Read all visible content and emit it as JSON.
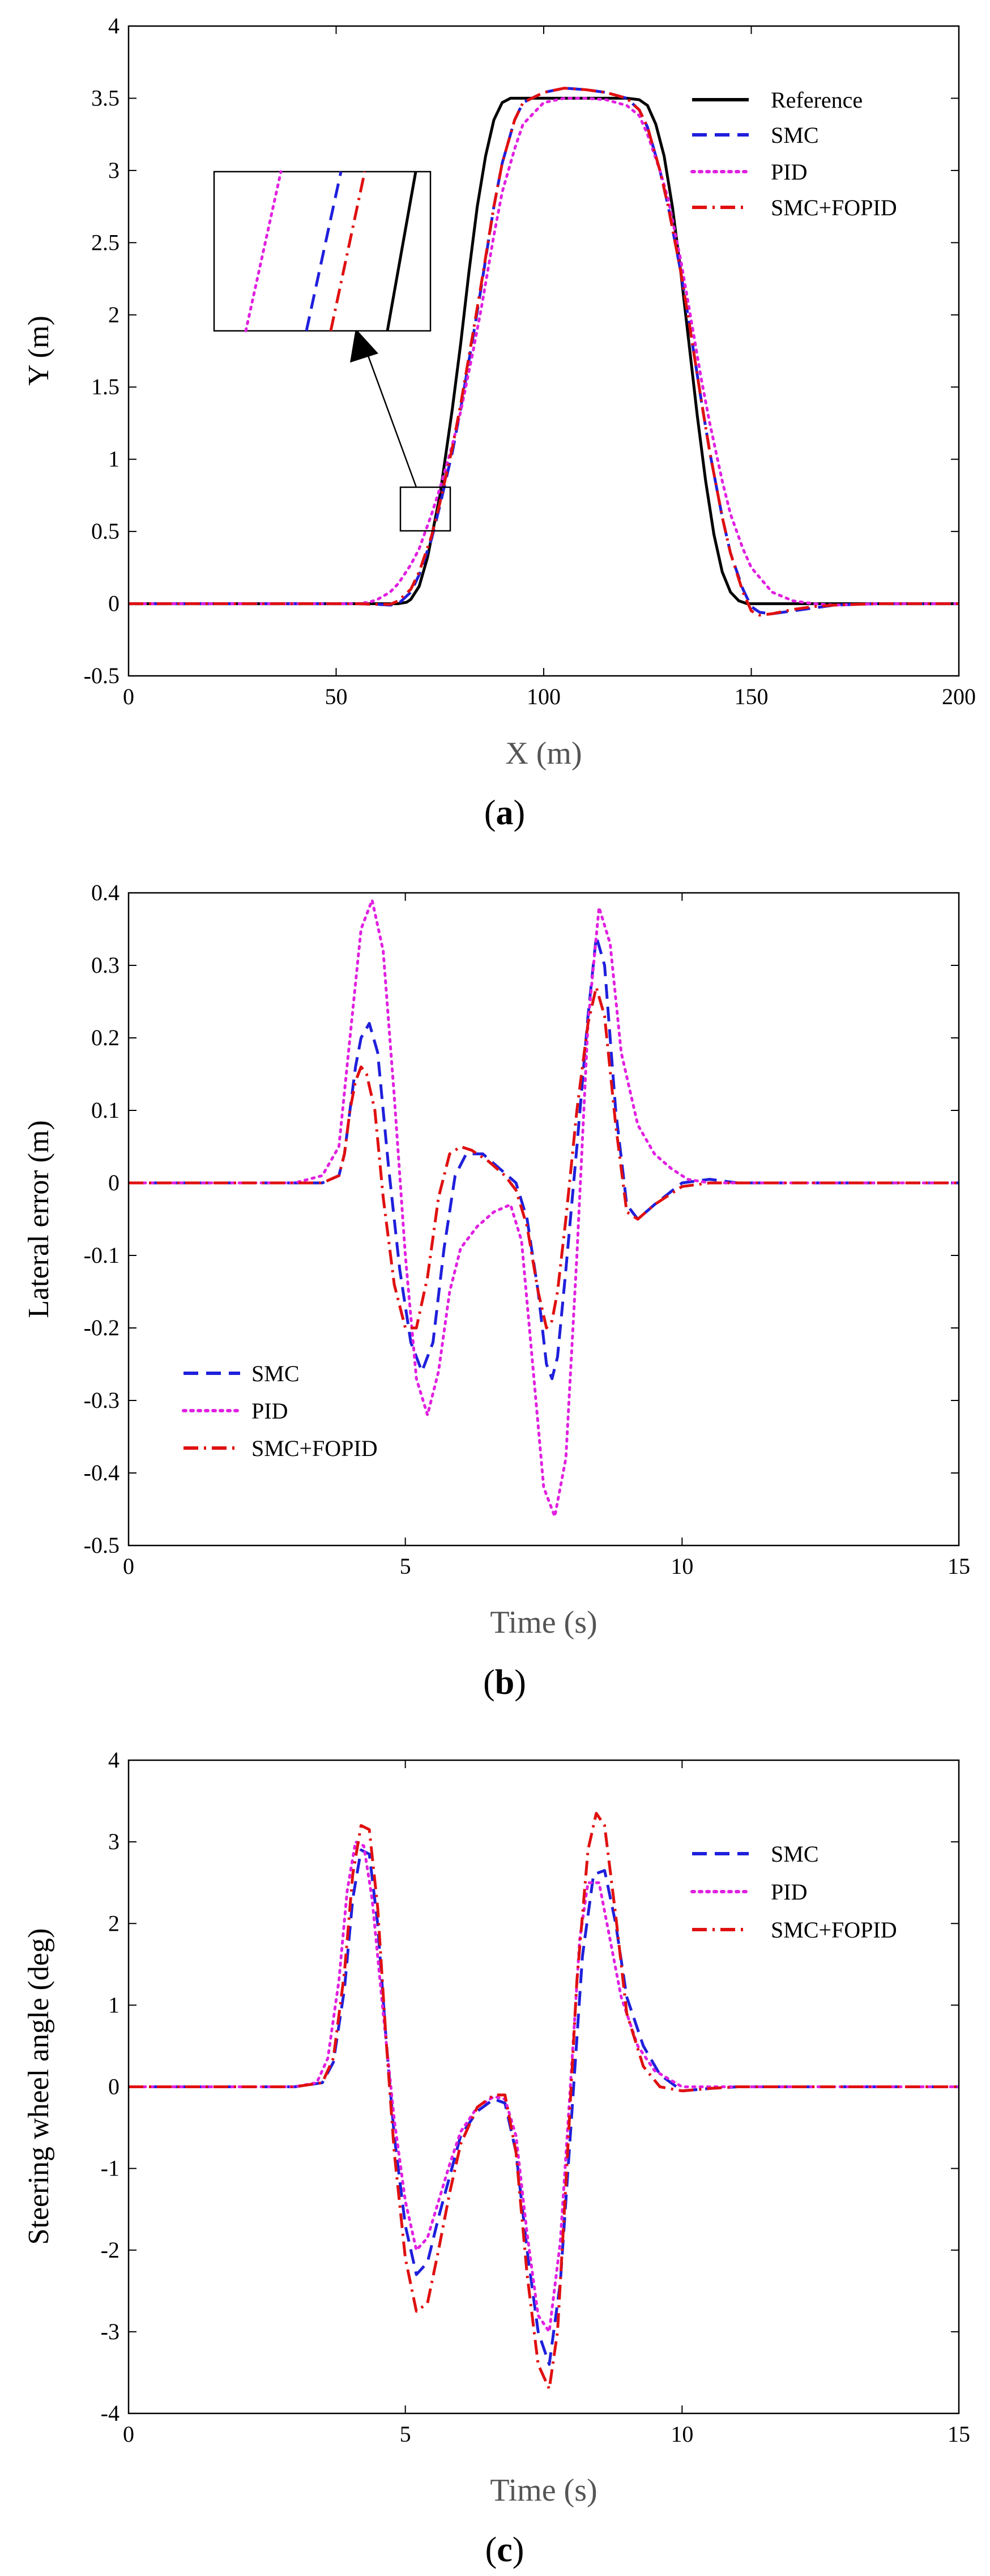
{
  "chart_data": [
    {
      "type": "line",
      "panel": "a",
      "caption": {
        "open": "(",
        "letter": "a",
        "close": ")"
      },
      "xlabel": "X (m)",
      "ylabel": "Y (m)",
      "xlim": [
        0,
        200
      ],
      "ylim": [
        -0.5,
        4
      ],
      "xticks": [
        0,
        50,
        100,
        150,
        200
      ],
      "yticks": [
        -0.5,
        0,
        0.5,
        1,
        1.5,
        2,
        2.5,
        3,
        3.5,
        4
      ],
      "legend_position": "top-right",
      "series": [
        {
          "name": "Reference",
          "color": "#000000",
          "style": "solid",
          "x": [
            0,
            60,
            65,
            67,
            68,
            70,
            72,
            75,
            78,
            80,
            82,
            84,
            86,
            88,
            90,
            92,
            93,
            95,
            100,
            110,
            120,
            123,
            125,
            127,
            129,
            131,
            133,
            135,
            137,
            139,
            141,
            143,
            145,
            147,
            149,
            150,
            200
          ],
          "y": [
            0,
            0,
            0,
            0.01,
            0.03,
            0.12,
            0.32,
            0.75,
            1.35,
            1.8,
            2.3,
            2.75,
            3.1,
            3.35,
            3.47,
            3.5,
            3.5,
            3.5,
            3.5,
            3.5,
            3.5,
            3.49,
            3.45,
            3.32,
            3.1,
            2.75,
            2.3,
            1.8,
            1.3,
            0.85,
            0.48,
            0.22,
            0.08,
            0.02,
            0.0,
            0,
            0
          ]
        },
        {
          "name": "SMC",
          "color": "#1f1fdc",
          "style": "dash",
          "x": [
            0,
            55,
            60,
            63,
            65,
            68,
            70,
            73,
            75,
            78,
            80,
            83,
            85,
            88,
            90,
            93,
            95,
            100,
            105,
            110,
            115,
            120,
            123,
            125,
            128,
            130,
            133,
            135,
            138,
            140,
            143,
            145,
            148,
            150,
            152,
            155,
            160,
            165,
            170,
            180,
            200
          ],
          "y": [
            0,
            0,
            -0.005,
            -0.01,
            0.0,
            0.08,
            0.2,
            0.45,
            0.68,
            1.05,
            1.35,
            1.85,
            2.2,
            2.75,
            3.05,
            3.35,
            3.47,
            3.54,
            3.57,
            3.56,
            3.54,
            3.5,
            3.42,
            3.3,
            3.0,
            2.75,
            2.3,
            1.95,
            1.4,
            1.05,
            0.6,
            0.35,
            0.1,
            -0.02,
            -0.06,
            -0.07,
            -0.05,
            -0.03,
            -0.01,
            0,
            0
          ]
        },
        {
          "name": "PID",
          "color": "#e020e0",
          "style": "dot",
          "x": [
            0,
            55,
            58,
            60,
            63,
            65,
            68,
            70,
            73,
            75,
            78,
            80,
            83,
            85,
            88,
            90,
            93,
            95,
            100,
            105,
            110,
            115,
            120,
            123,
            125,
            128,
            130,
            133,
            135,
            138,
            140,
            143,
            145,
            148,
            150,
            155,
            160,
            165,
            170,
            180,
            200
          ],
          "y": [
            0,
            0,
            0.01,
            0.03,
            0.08,
            0.14,
            0.27,
            0.38,
            0.62,
            0.8,
            1.1,
            1.33,
            1.75,
            2.05,
            2.55,
            2.85,
            3.15,
            3.32,
            3.47,
            3.5,
            3.5,
            3.49,
            3.45,
            3.38,
            3.25,
            3.0,
            2.8,
            2.38,
            2.05,
            1.55,
            1.25,
            0.85,
            0.62,
            0.38,
            0.25,
            0.08,
            0.02,
            0.0,
            -0.01,
            0,
            0
          ]
        },
        {
          "name": "SMC+FOPID",
          "color": "#e01010",
          "style": "dashdot",
          "x": [
            0,
            55,
            60,
            63,
            65,
            68,
            70,
            73,
            75,
            78,
            80,
            83,
            85,
            88,
            90,
            93,
            95,
            100,
            105,
            110,
            115,
            120,
            123,
            125,
            128,
            130,
            133,
            135,
            138,
            140,
            143,
            145,
            148,
            150,
            152,
            155,
            160,
            165,
            170,
            180,
            200
          ],
          "y": [
            0,
            0,
            -0.005,
            -0.005,
            0.02,
            0.1,
            0.22,
            0.47,
            0.7,
            1.08,
            1.38,
            1.88,
            2.22,
            2.75,
            3.05,
            3.35,
            3.47,
            3.54,
            3.57,
            3.56,
            3.54,
            3.5,
            3.42,
            3.3,
            3.0,
            2.75,
            2.3,
            1.95,
            1.4,
            1.05,
            0.6,
            0.35,
            0.08,
            -0.05,
            -0.08,
            -0.07,
            -0.04,
            -0.02,
            -0.01,
            0,
            0
          ]
        }
      ],
      "inset": {
        "source_box": {
          "x": [
            66,
            78
          ],
          "y": [
            0.53,
            0.83
          ]
        },
        "arrow": "points from source box to inset",
        "shows": [
          "PID",
          "SMC",
          "SMC+FOPID",
          "Reference"
        ]
      }
    },
    {
      "type": "line",
      "panel": "b",
      "caption": {
        "open": "(",
        "letter": "b",
        "close": ")"
      },
      "xlabel": "Time (s)",
      "ylabel": "Lateral error (m)",
      "xlim": [
        0,
        15
      ],
      "ylim": [
        -0.5,
        0.4
      ],
      "xticks": [
        0,
        5,
        10,
        15
      ],
      "yticks": [
        -0.5,
        -0.4,
        -0.3,
        -0.2,
        -0.1,
        0,
        0.1,
        0.2,
        0.3,
        0.4
      ],
      "legend_position": "bottom-left",
      "series": [
        {
          "name": "SMC",
          "color": "#1f1fdc",
          "style": "dash",
          "x": [
            0,
            3,
            3.5,
            3.8,
            3.9,
            4.0,
            4.1,
            4.2,
            4.35,
            4.5,
            4.7,
            4.9,
            5.1,
            5.3,
            5.5,
            5.7,
            5.9,
            6.1,
            6.4,
            6.7,
            7.0,
            7.2,
            7.4,
            7.55,
            7.65,
            7.75,
            7.9,
            8.1,
            8.3,
            8.45,
            8.6,
            8.8,
            9.0,
            9.2,
            9.5,
            10,
            10.5,
            11,
            15
          ],
          "y": [
            0,
            0,
            0,
            0.01,
            0.04,
            0.1,
            0.16,
            0.2,
            0.22,
            0.18,
            0.02,
            -0.12,
            -0.22,
            -0.26,
            -0.22,
            -0.09,
            0.01,
            0.04,
            0.04,
            0.02,
            0.0,
            -0.05,
            -0.15,
            -0.25,
            -0.27,
            -0.24,
            -0.12,
            0.05,
            0.23,
            0.34,
            0.3,
            0.1,
            -0.03,
            -0.05,
            -0.03,
            0.0,
            0.005,
            0.0,
            0
          ]
        },
        {
          "name": "PID",
          "color": "#e020e0",
          "style": "dot",
          "x": [
            0,
            3,
            3.5,
            3.8,
            4.0,
            4.2,
            4.4,
            4.6,
            4.8,
            5.0,
            5.2,
            5.4,
            5.6,
            5.8,
            6.0,
            6.3,
            6.6,
            6.9,
            7.1,
            7.3,
            7.5,
            7.7,
            7.9,
            8.1,
            8.3,
            8.5,
            8.7,
            8.9,
            9.2,
            9.5,
            9.8,
            10.1,
            10.5,
            11,
            15
          ],
          "y": [
            0,
            0,
            0.01,
            0.05,
            0.2,
            0.35,
            0.39,
            0.32,
            0.12,
            -0.1,
            -0.27,
            -0.32,
            -0.26,
            -0.15,
            -0.09,
            -0.06,
            -0.04,
            -0.03,
            -0.08,
            -0.25,
            -0.42,
            -0.46,
            -0.38,
            -0.1,
            0.22,
            0.38,
            0.33,
            0.18,
            0.08,
            0.04,
            0.02,
            0.005,
            0.0,
            0.0,
            0
          ]
        },
        {
          "name": "SMC+FOPID",
          "color": "#e01010",
          "style": "dashdot",
          "x": [
            0,
            3,
            3.5,
            3.8,
            3.9,
            4.0,
            4.1,
            4.2,
            4.3,
            4.45,
            4.6,
            4.8,
            5.0,
            5.2,
            5.4,
            5.6,
            5.8,
            6.0,
            6.2,
            6.5,
            6.8,
            7.0,
            7.2,
            7.4,
            7.55,
            7.65,
            7.75,
            7.9,
            8.1,
            8.3,
            8.45,
            8.6,
            8.8,
            9.0,
            9.2,
            9.5,
            10,
            10.5,
            11,
            15
          ],
          "y": [
            0,
            0,
            0,
            0.01,
            0.04,
            0.1,
            0.14,
            0.16,
            0.15,
            0.1,
            -0.02,
            -0.14,
            -0.2,
            -0.2,
            -0.13,
            -0.02,
            0.04,
            0.05,
            0.045,
            0.03,
            0.01,
            -0.01,
            -0.06,
            -0.15,
            -0.2,
            -0.19,
            -0.15,
            -0.05,
            0.1,
            0.22,
            0.27,
            0.23,
            0.08,
            -0.04,
            -0.05,
            -0.03,
            -0.005,
            0.0,
            0.0,
            0
          ]
        }
      ]
    },
    {
      "type": "line",
      "panel": "c",
      "caption": {
        "open": "(",
        "letter": "c",
        "close": ")"
      },
      "xlabel": "Time (s)",
      "ylabel": "Steering wheel angle (deg)",
      "xlim": [
        0,
        15
      ],
      "ylim": [
        -4,
        4
      ],
      "xticks": [
        0,
        5,
        10,
        15
      ],
      "yticks": [
        -4,
        -3,
        -2,
        -1,
        0,
        1,
        2,
        3,
        4
      ],
      "legend_position": "top-right",
      "series": [
        {
          "name": "SMC",
          "color": "#1f1fdc",
          "style": "dash",
          "x": [
            0,
            3,
            3.5,
            3.7,
            3.9,
            4.05,
            4.2,
            4.35,
            4.5,
            4.65,
            4.8,
            5.0,
            5.2,
            5.4,
            5.6,
            5.8,
            6.0,
            6.3,
            6.6,
            6.8,
            7.0,
            7.2,
            7.4,
            7.6,
            7.8,
            8.0,
            8.2,
            8.4,
            8.6,
            8.8,
            9.0,
            9.3,
            9.6,
            10,
            10.5,
            11,
            15
          ],
          "y": [
            0,
            0,
            0.05,
            0.3,
            1.2,
            2.3,
            2.9,
            2.85,
            2.0,
            0.6,
            -0.6,
            -1.7,
            -2.3,
            -2.15,
            -1.6,
            -1.1,
            -0.6,
            -0.3,
            -0.15,
            -0.2,
            -0.8,
            -2.0,
            -3.0,
            -3.4,
            -2.4,
            -0.4,
            1.6,
            2.6,
            2.65,
            2.0,
            1.1,
            0.5,
            0.15,
            -0.05,
            -0.02,
            0.0,
            0
          ]
        },
        {
          "name": "PID",
          "color": "#e020e0",
          "style": "dot",
          "x": [
            0,
            3,
            3.4,
            3.6,
            3.8,
            3.95,
            4.1,
            4.25,
            4.4,
            4.6,
            4.8,
            5.0,
            5.2,
            5.4,
            5.6,
            5.8,
            6.0,
            6.3,
            6.6,
            6.8,
            7.0,
            7.2,
            7.4,
            7.6,
            7.8,
            8.0,
            8.15,
            8.3,
            8.5,
            8.7,
            8.9,
            9.2,
            9.5,
            10,
            10.5,
            11,
            15
          ],
          "y": [
            0,
            0,
            0.05,
            0.35,
            1.3,
            2.4,
            3.0,
            2.95,
            2.3,
            0.9,
            -0.4,
            -1.4,
            -2.0,
            -1.85,
            -1.4,
            -0.95,
            -0.55,
            -0.25,
            -0.12,
            -0.15,
            -0.6,
            -1.8,
            -2.8,
            -3.0,
            -1.9,
            0.2,
            1.8,
            2.5,
            2.5,
            1.8,
            1.1,
            0.5,
            0.2,
            0.0,
            0.0,
            0.0,
            0
          ]
        },
        {
          "name": "SMC+FOPID",
          "color": "#e01010",
          "style": "dashdot",
          "x": [
            0,
            3,
            3.5,
            3.7,
            3.9,
            4.05,
            4.2,
            4.35,
            4.5,
            4.65,
            4.8,
            5.0,
            5.2,
            5.4,
            5.6,
            5.8,
            6.0,
            6.3,
            6.6,
            6.8,
            7.0,
            7.2,
            7.4,
            7.6,
            7.75,
            7.9,
            8.1,
            8.3,
            8.45,
            8.6,
            8.8,
            9.0,
            9.3,
            9.6,
            10,
            10.5,
            11,
            15
          ],
          "y": [
            0,
            0,
            0.05,
            0.35,
            1.4,
            2.6,
            3.2,
            3.15,
            2.2,
            0.6,
            -0.8,
            -2.1,
            -2.75,
            -2.65,
            -2.0,
            -1.3,
            -0.7,
            -0.25,
            -0.1,
            -0.1,
            -0.8,
            -2.3,
            -3.4,
            -3.7,
            -3.0,
            -1.2,
            1.3,
            2.9,
            3.35,
            3.2,
            2.1,
            0.9,
            0.25,
            0.0,
            -0.05,
            -0.02,
            0.0,
            0
          ]
        }
      ]
    }
  ]
}
